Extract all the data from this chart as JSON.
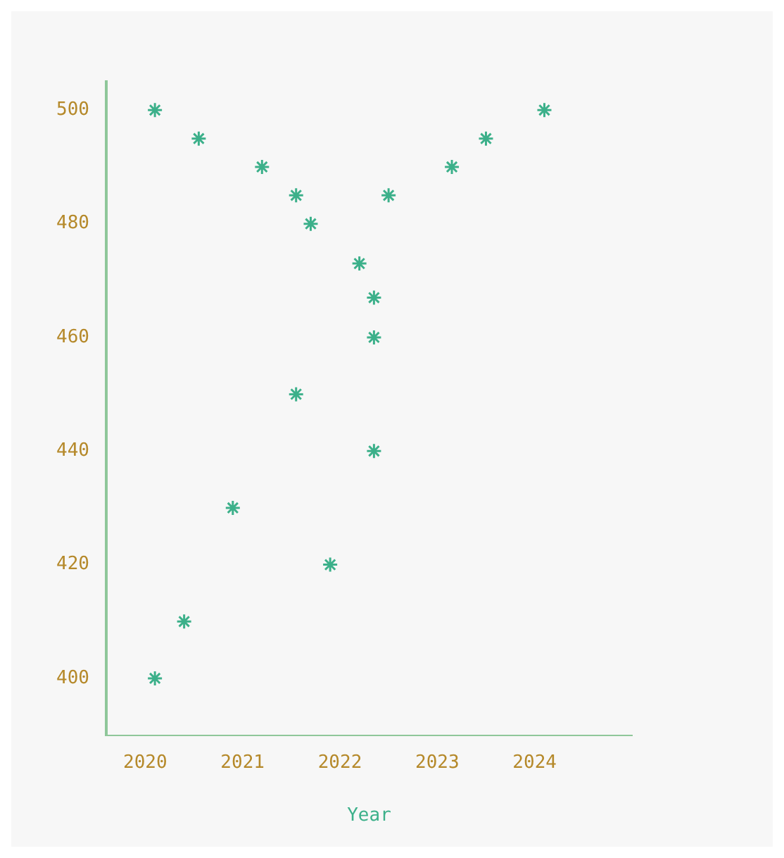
{
  "chart_data": {
    "type": "scatter",
    "xlabel": "Year",
    "marker": "cross",
    "color": "#3cb08a",
    "x": [
      2020.1,
      2020.55,
      2021.2,
      2021.55,
      2021.7,
      2022.2,
      2022.35,
      2022.35,
      2021.55,
      2022.35,
      2020.9,
      2021.9,
      2020.4,
      2020.1,
      2022.5,
      2023.15,
      2023.5,
      2024.1
    ],
    "values": [
      500,
      495,
      490,
      485,
      480,
      473,
      467,
      460,
      450,
      440,
      430,
      420,
      410,
      400,
      485,
      490,
      495,
      500
    ],
    "xlim": [
      2019.6,
      2025
    ],
    "xticks": [
      2020,
      2021,
      2022,
      2023,
      2024
    ],
    "ylim": [
      390,
      505
    ],
    "yticks": [
      400,
      420,
      440,
      460,
      480,
      500
    ]
  }
}
